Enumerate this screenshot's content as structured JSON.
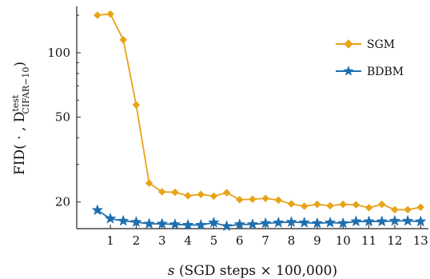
{
  "chart_data": {
    "type": "line",
    "title": "",
    "xlabel": "s (SGD steps × 100,000)",
    "ylabel": "FID( · , D_CIFAR−10^test)",
    "ylabel_parts": {
      "main": "FID( · , D",
      "sup": "test",
      "sub": "CIFAR−10",
      "close": ")"
    },
    "xlabel_parts": {
      "var": "s",
      "rest": " (SGD steps × 100,000)"
    },
    "x_ticks": [
      1,
      2,
      3,
      4,
      5,
      6,
      7,
      8,
      9,
      10,
      11,
      12,
      13
    ],
    "y_ticks": [
      20,
      50,
      100
    ],
    "y_scale": "log",
    "xlim": [
      -0.3,
      13.3
    ],
    "ylim": [
      15.0,
      165.0
    ],
    "grid": false,
    "legend_position": "top-right",
    "series": [
      {
        "name": "SGM",
        "color": "#E8A317",
        "marker": "diamond",
        "x": [
          0.5,
          1.0,
          1.5,
          2.0,
          2.5,
          3.0,
          3.5,
          4.0,
          4.5,
          5.0,
          5.5,
          6.0,
          6.5,
          7.0,
          7.5,
          8.0,
          8.5,
          9.0,
          9.5,
          10.0,
          10.5,
          11.0,
          11.5,
          12.0,
          12.5,
          13.0
        ],
        "values": [
          150,
          152,
          115,
          57,
          24.5,
          22.3,
          22.2,
          21.4,
          21.7,
          21.3,
          22.1,
          20.5,
          20.6,
          20.8,
          20.4,
          19.6,
          19.1,
          19.5,
          19.2,
          19.5,
          19.4,
          18.8,
          19.5,
          18.4,
          18.4,
          18.9
        ]
      },
      {
        "name": "BDBM",
        "color": "#1F6FAE",
        "marker": "star",
        "x": [
          0.5,
          1.0,
          1.5,
          2.0,
          2.5,
          3.0,
          3.5,
          4.0,
          4.5,
          5.0,
          5.5,
          6.0,
          6.5,
          7.0,
          7.5,
          8.0,
          8.5,
          9.0,
          9.5,
          10.0,
          10.5,
          11.0,
          11.5,
          12.0,
          12.5,
          13.0
        ],
        "values": [
          18.3,
          16.7,
          16.3,
          16.1,
          15.8,
          15.8,
          15.7,
          15.6,
          15.6,
          16.0,
          15.4,
          15.7,
          15.7,
          15.9,
          16.0,
          16.1,
          16.0,
          15.9,
          16.0,
          15.9,
          16.2,
          16.2,
          16.2,
          16.3,
          16.3,
          16.2
        ]
      }
    ]
  }
}
